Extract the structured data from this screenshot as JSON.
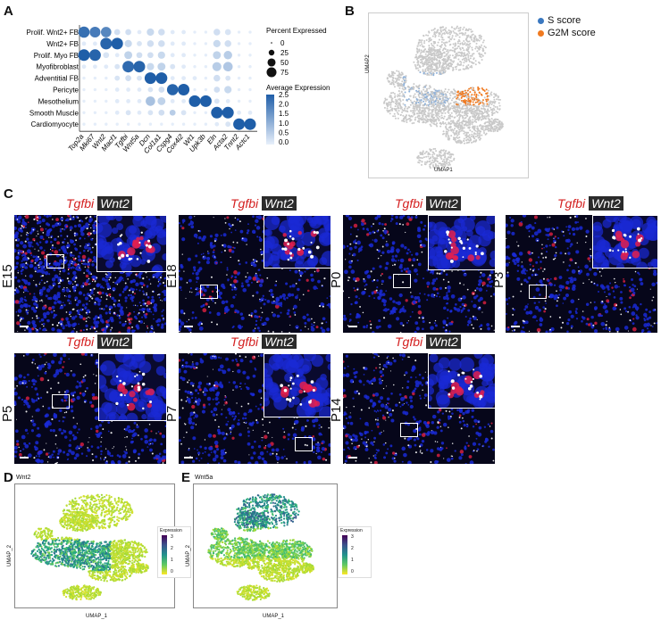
{
  "panels": {
    "A": {
      "letter": "A",
      "chart_data": {
        "type": "dotplot",
        "rows": [
          "Prolif. Wnt2+ FB",
          "Wnt2+ FB",
          "Prolif. Myo FB",
          "Myofibroblast",
          "Adventitial FB",
          "Pericyte",
          "Mesothelium",
          "Smooth Muscle",
          "Cardiomyocyte"
        ],
        "genes": [
          "Top2a",
          "Mki67",
          "Wnt2",
          "Macf1",
          "Tgfbi",
          "Wnt5a",
          "Dcn",
          "Col1a1",
          "Cspg4",
          "Cox4i2",
          "Wt1",
          "Upk3b",
          "Eln",
          "Acta2",
          "Tnnt2",
          "Actc1"
        ],
        "legend_pct_title": "Percent Expressed",
        "legend_pct_values": [
          "0",
          "25",
          "50",
          "75"
        ],
        "legend_avg_title": "Average Expression",
        "legend_avg_ticks": [
          "2.5",
          "2.0",
          "1.5",
          "1.0",
          "0.5",
          "0.0"
        ],
        "avg_range": [
          0,
          2.5
        ],
        "pct_range": [
          0,
          75
        ],
        "dots": [
          [
            [
              2.2,
              70
            ],
            [
              2.0,
              65
            ],
            [
              1.8,
              60
            ],
            [
              0.3,
              20
            ],
            [
              0.3,
              20
            ],
            [
              0.1,
              10
            ],
            [
              0.4,
              30
            ],
            [
              0.3,
              25
            ],
            [
              0.1,
              10
            ],
            [
              0.1,
              10
            ],
            [
              0.05,
              5
            ],
            [
              0.05,
              5
            ],
            [
              0.3,
              25
            ],
            [
              0.2,
              20
            ],
            [
              0.05,
              5
            ],
            [
              0.05,
              5
            ]
          ],
          [
            [
              0.1,
              10
            ],
            [
              0.1,
              10
            ],
            [
              2.4,
              75
            ],
            [
              2.5,
              75
            ],
            [
              0.4,
              30
            ],
            [
              0.2,
              15
            ],
            [
              0.3,
              25
            ],
            [
              0.3,
              25
            ],
            [
              0.1,
              10
            ],
            [
              0.1,
              10
            ],
            [
              0.05,
              5
            ],
            [
              0.05,
              5
            ],
            [
              0.4,
              30
            ],
            [
              0.3,
              25
            ],
            [
              0.05,
              5
            ],
            [
              0.05,
              5
            ]
          ],
          [
            [
              2.5,
              75
            ],
            [
              2.4,
              75
            ],
            [
              0.2,
              20
            ],
            [
              0.1,
              10
            ],
            [
              0.5,
              35
            ],
            [
              0.3,
              20
            ],
            [
              0.3,
              20
            ],
            [
              0.4,
              30
            ],
            [
              0.1,
              10
            ],
            [
              0.1,
              10
            ],
            [
              0.05,
              5
            ],
            [
              0.05,
              5
            ],
            [
              0.5,
              35
            ],
            [
              0.6,
              40
            ],
            [
              0.05,
              5
            ],
            [
              0.05,
              5
            ]
          ],
          [
            [
              0.1,
              10
            ],
            [
              0.1,
              10
            ],
            [
              0.1,
              10
            ],
            [
              0.2,
              15
            ],
            [
              2.3,
              75
            ],
            [
              2.4,
              75
            ],
            [
              0.4,
              30
            ],
            [
              0.5,
              35
            ],
            [
              0.2,
              15
            ],
            [
              0.1,
              10
            ],
            [
              0.05,
              5
            ],
            [
              0.05,
              5
            ],
            [
              0.6,
              45
            ],
            [
              0.7,
              50
            ],
            [
              0.05,
              5
            ],
            [
              0.05,
              5
            ]
          ],
          [
            [
              0.05,
              5
            ],
            [
              0.05,
              5
            ],
            [
              0.05,
              5
            ],
            [
              0.2,
              15
            ],
            [
              0.3,
              20
            ],
            [
              0.2,
              15
            ],
            [
              2.5,
              75
            ],
            [
              2.5,
              75
            ],
            [
              0.1,
              10
            ],
            [
              0.1,
              10
            ],
            [
              0.1,
              10
            ],
            [
              0.05,
              5
            ],
            [
              0.3,
              25
            ],
            [
              0.2,
              15
            ],
            [
              0.05,
              5
            ],
            [
              0.05,
              5
            ]
          ],
          [
            [
              0.05,
              5
            ],
            [
              0.05,
              5
            ],
            [
              0.05,
              5
            ],
            [
              0.1,
              10
            ],
            [
              0.1,
              10
            ],
            [
              0.1,
              10
            ],
            [
              0.2,
              15
            ],
            [
              0.3,
              20
            ],
            [
              2.4,
              70
            ],
            [
              2.5,
              75
            ],
            [
              0.05,
              5
            ],
            [
              0.05,
              5
            ],
            [
              0.3,
              20
            ],
            [
              0.4,
              30
            ],
            [
              0.05,
              5
            ],
            [
              0.05,
              5
            ]
          ],
          [
            [
              0.05,
              5
            ],
            [
              0.05,
              5
            ],
            [
              0.05,
              5
            ],
            [
              0.1,
              10
            ],
            [
              0.1,
              10
            ],
            [
              0.1,
              10
            ],
            [
              0.8,
              50
            ],
            [
              0.5,
              35
            ],
            [
              0.1,
              10
            ],
            [
              0.1,
              10
            ],
            [
              2.5,
              75
            ],
            [
              2.5,
              75
            ],
            [
              0.2,
              15
            ],
            [
              0.1,
              10
            ],
            [
              0.05,
              5
            ],
            [
              0.05,
              5
            ]
          ],
          [
            [
              0.05,
              5
            ],
            [
              0.05,
              5
            ],
            [
              0.05,
              5
            ],
            [
              0.1,
              10
            ],
            [
              0.2,
              15
            ],
            [
              0.1,
              10
            ],
            [
              0.2,
              15
            ],
            [
              0.3,
              20
            ],
            [
              0.6,
              20
            ],
            [
              0.2,
              15
            ],
            [
              0.05,
              5
            ],
            [
              0.05,
              5
            ],
            [
              2.5,
              75
            ],
            [
              2.5,
              75
            ],
            [
              0.1,
              10
            ],
            [
              0.1,
              10
            ]
          ],
          [
            [
              0.05,
              5
            ],
            [
              0.05,
              5
            ],
            [
              0.05,
              5
            ],
            [
              0.05,
              5
            ],
            [
              0.05,
              5
            ],
            [
              0.05,
              5
            ],
            [
              0.05,
              5
            ],
            [
              0.05,
              5
            ],
            [
              0.05,
              5
            ],
            [
              0.05,
              5
            ],
            [
              0.05,
              5
            ],
            [
              0.05,
              5
            ],
            [
              0.1,
              10
            ],
            [
              0.2,
              15
            ],
            [
              2.5,
              75
            ],
            [
              2.5,
              75
            ]
          ]
        ]
      }
    },
    "B": {
      "letter": "B",
      "xlabel": "UMAP1",
      "ylabel": "UMAP2",
      "legend": [
        {
          "label": "S score",
          "color": "#3a78c0"
        },
        {
          "label": "G2M score",
          "color": "#f07a20"
        }
      ]
    },
    "C": {
      "letter": "C",
      "header_gene1": "Tgfbi",
      "header_gene2": "Wnt2",
      "stages": [
        "E15",
        "E18",
        "P0",
        "P3",
        "P5",
        "P7",
        "P14"
      ]
    },
    "D": {
      "letter": "D",
      "title": "Wnt2",
      "xlabel": "UMAP_1",
      "ylabel": "UMAP_2",
      "legend_title": "Expression",
      "legend_ticks": [
        "3",
        "2",
        "1",
        "0"
      ]
    },
    "E": {
      "letter": "E",
      "title": "Wnt5a",
      "xlabel": "UMAP_1",
      "ylabel": "UMAP_2",
      "legend_title": "Expression",
      "legend_ticks": [
        "3",
        "2",
        "1",
        "0"
      ]
    },
    "colors": {
      "dot_low": "#e8f0fb",
      "dot_high": "#1f5ea8",
      "umap_grey": "#c8c8c8",
      "viridis_low": "#f2e51d",
      "viridis_mid": "#21918c",
      "viridis_high": "#440154",
      "tgfbi_red": "#d42020",
      "dapi_blue": "#1a2ad6"
    }
  }
}
